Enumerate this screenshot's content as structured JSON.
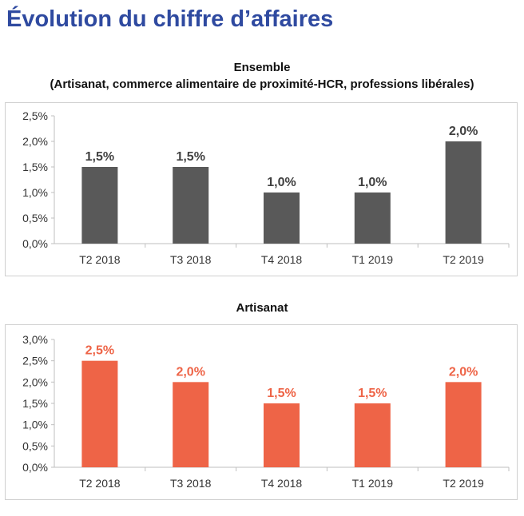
{
  "page": {
    "title": "Évolution du chiffre d’affaires"
  },
  "chart_data": [
    {
      "type": "bar",
      "title": "Ensemble",
      "subtitle": "(Artisanat, commerce alimentaire de proximité-HCR, professions libérales)",
      "categories": [
        "T2 2018",
        "T3 2018",
        "T4 2018",
        "T1 2019",
        "T2 2019"
      ],
      "values": [
        1.5,
        1.5,
        1.0,
        1.0,
        2.0
      ],
      "value_labels": [
        "1,5%",
        "1,5%",
        "1,0%",
        "1,0%",
        "2,0%"
      ],
      "yticks": [
        "0,0%",
        "0,5%",
        "1,0%",
        "1,5%",
        "2,0%",
        "2,5%"
      ],
      "ylim": [
        0,
        2.5
      ],
      "ystep": 0.5,
      "grid": false,
      "legend": "none",
      "bar_color": "#595959",
      "label_color": "#404040"
    },
    {
      "type": "bar",
      "title": "Artisanat",
      "subtitle": "",
      "categories": [
        "T2 2018",
        "T3 2018",
        "T4 2018",
        "T1 2019",
        "T2 2019"
      ],
      "values": [
        2.5,
        2.0,
        1.5,
        1.5,
        2.0
      ],
      "value_labels": [
        "2,5%",
        "2,0%",
        "1,5%",
        "1,5%",
        "2,0%"
      ],
      "yticks": [
        "0,0%",
        "0,5%",
        "1,0%",
        "1,5%",
        "2,0%",
        "2,5%",
        "3,0%"
      ],
      "ylim": [
        0,
        3.0
      ],
      "ystep": 0.5,
      "grid": false,
      "legend": "none",
      "bar_color": "#ee6447",
      "label_color": "#ee6447"
    }
  ]
}
